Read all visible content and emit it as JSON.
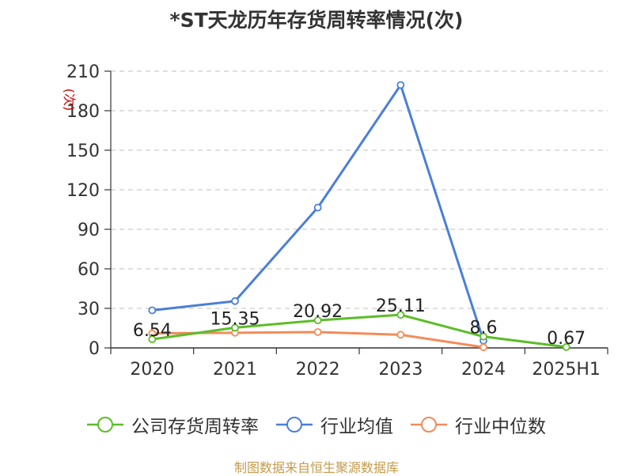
{
  "title": "*ST天龙历年存货周转率情况(次)",
  "source": "制图数据来自恒生聚源数据库",
  "chart_data": {
    "type": "line",
    "title": "*ST天龙历年存货周转率情况(次)",
    "ylabel": "(次)",
    "xlabel": "",
    "categories": [
      "2020",
      "2021",
      "2022",
      "2023",
      "2024",
      "2025H1"
    ],
    "ylim": [
      0,
      210
    ],
    "yticks": [
      0,
      30,
      60,
      90,
      120,
      150,
      180,
      210
    ],
    "grid": true,
    "legend_position": "bottom",
    "series": [
      {
        "name": "公司存货周转率",
        "color": "#5cbd28",
        "values": [
          6.54,
          15.35,
          20.92,
          25.11,
          8.6,
          0.67
        ],
        "labels": [
          "6.54",
          "15.35",
          "20.92",
          "25.11",
          "8.6",
          "0.67"
        ]
      },
      {
        "name": "行业均值",
        "color": "#4b7fd6",
        "values": [
          28.5,
          35.5,
          106.5,
          199.5,
          5.5,
          null
        ]
      },
      {
        "name": "行业中位数",
        "color": "#f28c59",
        "values": [
          11.0,
          11.5,
          12.0,
          10.0,
          0.5,
          null
        ]
      }
    ]
  }
}
